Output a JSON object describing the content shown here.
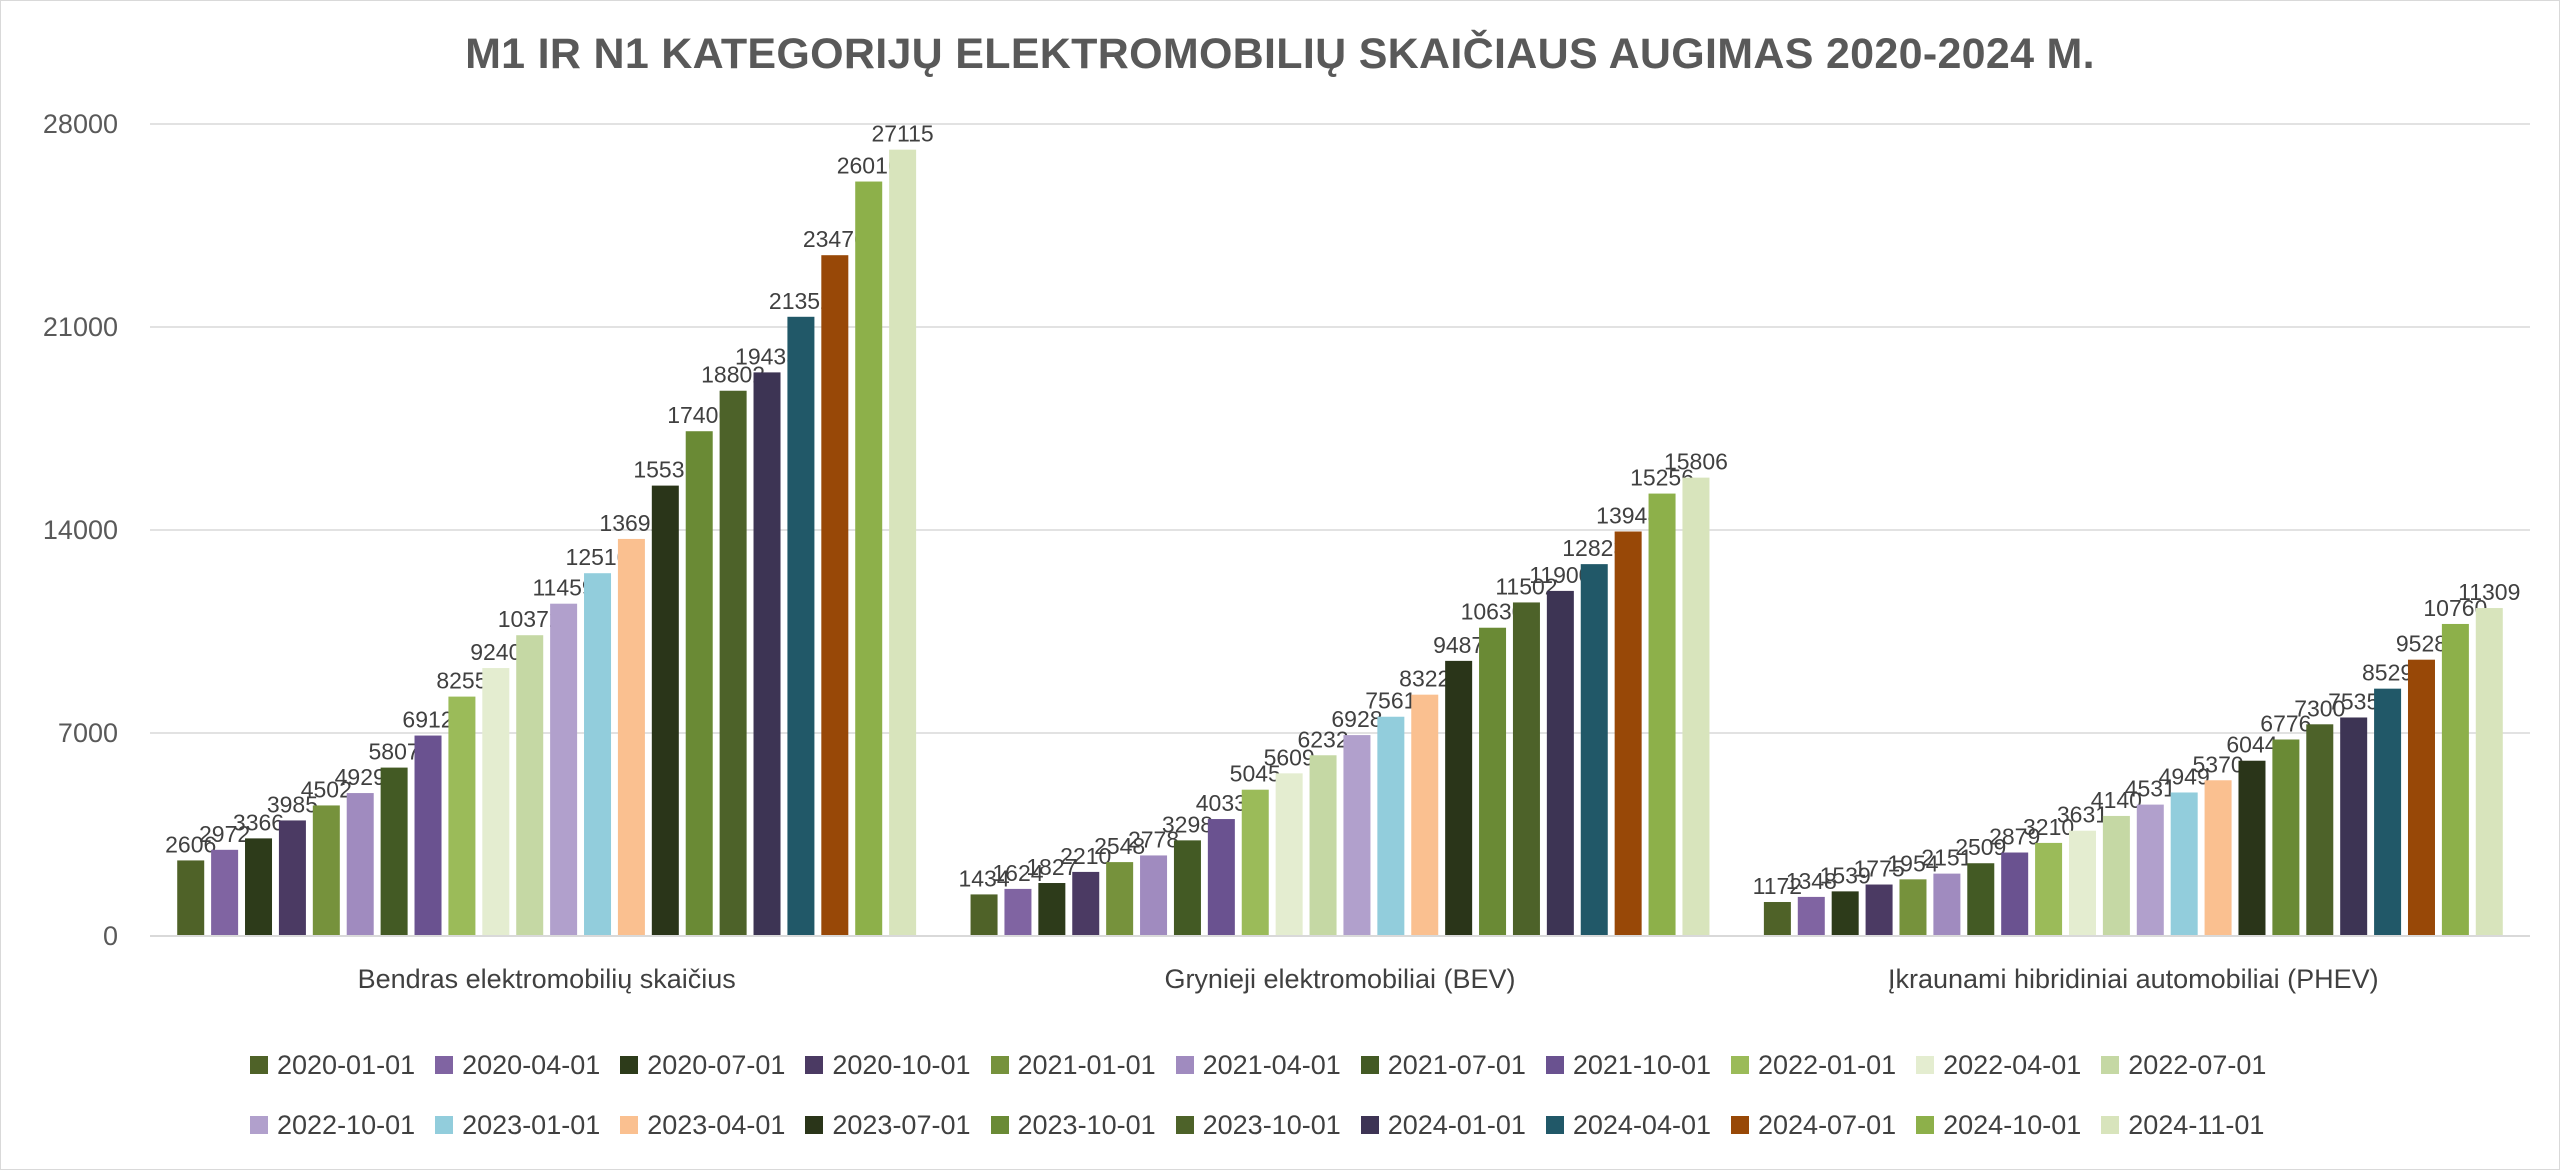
{
  "chart_data": {
    "type": "bar",
    "title": "M1 IR N1 KATEGORIJŲ ELEKTROMOBILIŲ SKAIČIAUS AUGIMAS 2020-2024 M.",
    "categories": [
      "Bendras elektromobilių skaičius",
      "Grynieji elektromobiliai (BEV)",
      "Įkraunami hibridiniai automobiliai (PHEV)"
    ],
    "ylim": [
      0,
      28000
    ],
    "yticks": [
      "0",
      "7000",
      "14000",
      "21000",
      "28000"
    ],
    "grid": true,
    "legend_position": "bottom",
    "series": [
      {
        "name": "2020-01-01",
        "color": "#4f6228",
        "values": [
          2606,
          1434,
          1172
        ]
      },
      {
        "name": "2020-04-01",
        "color": "#8064a2",
        "values": [
          2972,
          1624,
          1348
        ]
      },
      {
        "name": "2020-07-01",
        "color": "#2d3b1a",
        "values": [
          3366,
          1827,
          1539
        ]
      },
      {
        "name": "2020-10-01",
        "color": "#4b3a63",
        "values": [
          3985,
          2210,
          1775
        ]
      },
      {
        "name": "2021-01-01",
        "color": "#76923c",
        "values": [
          4502,
          2548,
          1954
        ]
      },
      {
        "name": "2021-04-01",
        "color": "#a08bbf",
        "values": [
          4929,
          2778,
          2151
        ]
      },
      {
        "name": "2021-07-01",
        "color": "#435a24",
        "values": [
          5807,
          3298,
          2509
        ]
      },
      {
        "name": "2021-10-01",
        "color": "#6a5290",
        "values": [
          6912,
          4033,
          2879
        ]
      },
      {
        "name": "2022-01-01",
        "color": "#9bbb59",
        "values": [
          8255,
          5045,
          3210
        ]
      },
      {
        "name": "2022-04-01",
        "color": "#e4edd0",
        "values": [
          9240,
          5609,
          3631
        ]
      },
      {
        "name": "2022-07-01",
        "color": "#c5d8a4",
        "values": [
          10372,
          6232,
          4140
        ]
      },
      {
        "name": "2022-10-01",
        "color": "#b1a0cc",
        "values": [
          11459,
          6928,
          4531
        ]
      },
      {
        "name": "2023-01-01",
        "color": "#92cddc",
        "values": [
          12510,
          7561,
          4949
        ]
      },
      {
        "name": "2023-04-01",
        "color": "#fac090",
        "values": [
          13692,
          8322,
          5370
        ]
      },
      {
        "name": "2023-07-01",
        "color": "#2a3519",
        "values": [
          15531,
          9487,
          6044
        ]
      },
      {
        "name": "2023-10-01",
        "color": "#6a8a35",
        "values": [
          17406,
          10630,
          6776
        ]
      },
      {
        "name": "2023-10-01",
        "color": "#4d6229",
        "values": [
          18802,
          11502,
          7300
        ]
      },
      {
        "name": "2024-01-01",
        "color": "#3d3454",
        "values": [
          19435,
          11900,
          7535
        ]
      },
      {
        "name": "2024-04-01",
        "color": "#215868",
        "values": [
          21352,
          12823,
          8529
        ]
      },
      {
        "name": "2024-07-01",
        "color": "#984807",
        "values": [
          23476,
          13948,
          9528
        ]
      },
      {
        "name": "2024-10-01",
        "color": "#8db04a",
        "values": [
          26016,
          15256,
          10760
        ]
      },
      {
        "name": "2024-11-01",
        "color": "#d8e4bc",
        "values": [
          27115,
          15806,
          11309
        ]
      }
    ]
  }
}
